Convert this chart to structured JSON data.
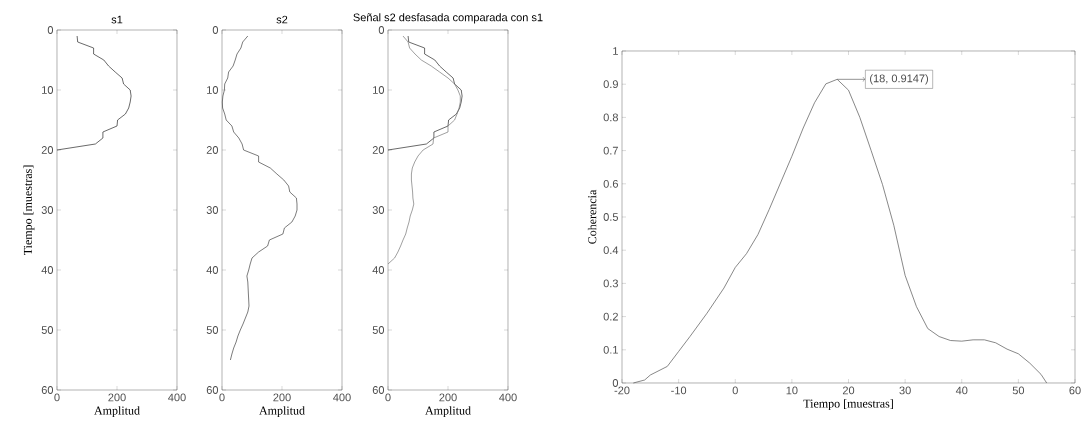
{
  "chart_data": [
    {
      "type": "line",
      "title": "s1",
      "xlabel": "Amplitud",
      "ylabel": "Tiempo [muestras]",
      "xlim": [
        0,
        400
      ],
      "ylim": [
        60,
        0
      ],
      "xticks": [
        0,
        200,
        400
      ],
      "yticks": [
        0,
        10,
        20,
        30,
        40,
        50,
        60
      ],
      "series": [
        {
          "color": "#2a2a2a",
          "x": [
            67,
            69,
            122,
            122,
            156,
            172,
            194,
            217,
            222,
            244,
            247,
            244,
            239,
            228,
            202,
            200,
            153,
            153,
            128,
            0
          ],
          "values": [
            1,
            2,
            3,
            4,
            5,
            6,
            7,
            8,
            9,
            10,
            11,
            12,
            13,
            14,
            15,
            16,
            17,
            18,
            19,
            20
          ]
        }
      ]
    },
    {
      "type": "line",
      "title": "s2",
      "xlabel": "Amplitud",
      "xlim": [
        0,
        400
      ],
      "ylim": [
        60,
        0
      ],
      "xticks": [
        0,
        200,
        400
      ],
      "yticks": [
        0,
        10,
        20,
        30,
        40,
        50,
        60
      ],
      "series": [
        {
          "color": "#444444",
          "x": [
            86,
            69,
            63,
            50,
            44,
            37,
            22,
            19,
            9,
            8,
            3,
            1,
            2,
            9,
            14,
            33,
            39,
            56,
            67,
            72,
            122,
            122,
            161,
            183,
            206,
            222,
            226,
            248,
            250,
            250,
            244,
            233,
            208,
            203,
            158,
            152,
            122,
            100,
            94,
            89,
            83,
            86,
            87,
            88,
            89,
            90,
            86,
            78,
            70,
            61,
            53,
            47,
            39,
            33,
            28
          ],
          "values": [
            1,
            2,
            3,
            4,
            5,
            6,
            7,
            8,
            9,
            10,
            11,
            12,
            13,
            14,
            15,
            16,
            17,
            18,
            19,
            20,
            21,
            22,
            23,
            24,
            25,
            26,
            27,
            28,
            29,
            30,
            31,
            32,
            33,
            34,
            35,
            36,
            37,
            38,
            39,
            40,
            41,
            42,
            43,
            44,
            45,
            46,
            47,
            48,
            49,
            50,
            51,
            52,
            53,
            54,
            55
          ]
        }
      ]
    },
    {
      "type": "line",
      "title": "Señal s2 desfasada comparada con s1",
      "xlabel": "Amplitud",
      "xlim": [
        0,
        400
      ],
      "ylim": [
        60,
        0
      ],
      "xticks": [
        0,
        200,
        400
      ],
      "yticks": [
        0,
        10,
        20,
        30,
        40,
        50,
        60
      ],
      "series": [
        {
          "color": "#2a2a2a",
          "x": [
            67,
            69,
            122,
            122,
            156,
            172,
            194,
            217,
            222,
            244,
            247,
            244,
            239,
            228,
            202,
            200,
            153,
            153,
            128,
            0
          ],
          "values": [
            1,
            2,
            3,
            4,
            5,
            6,
            7,
            8,
            9,
            10,
            11,
            12,
            13,
            14,
            15,
            16,
            17,
            18,
            19,
            20
          ]
        },
        {
          "color": "#777777",
          "x": [
            50,
            67,
            72,
            90,
            111,
            144,
            172,
            200,
            222,
            233,
            241,
            241,
            237,
            230,
            222,
            200,
            200,
            152,
            150,
            117,
            100,
            89,
            81,
            78,
            78,
            80,
            82,
            83,
            86,
            81,
            74,
            70,
            64,
            59,
            50,
            42,
            33,
            22,
            0
          ],
          "values": [
            1,
            2,
            3,
            4,
            5,
            6,
            7,
            8,
            9,
            10,
            11,
            12,
            13,
            14,
            15,
            16,
            17,
            18,
            19,
            20,
            21,
            22,
            23,
            24,
            25,
            26,
            27,
            28,
            29,
            30,
            31,
            32,
            33,
            34,
            35,
            36,
            37,
            38,
            39
          ]
        }
      ]
    },
    {
      "type": "line",
      "xlabel": "Tiempo [muestras]",
      "ylabel": "Coherencia",
      "xlim": [
        -20,
        60
      ],
      "ylim": [
        0,
        1
      ],
      "xticks": [
        -20,
        -10,
        0,
        10,
        20,
        30,
        40,
        50,
        60
      ],
      "yticks": [
        0,
        0.1,
        0.2,
        0.3,
        0.4,
        0.5,
        0.6,
        0.7,
        0.8,
        0.9,
        1
      ],
      "annotations": [
        {
          "text": "(18, 0.9147)",
          "x": 18,
          "y": 0.9147
        }
      ],
      "series": [
        {
          "color": "#555555",
          "x": [
            -18,
            -16,
            -15,
            -12,
            -10,
            -8,
            -5,
            -2,
            0,
            2,
            4,
            6,
            8,
            10,
            12,
            14,
            16,
            18,
            20,
            22,
            24,
            26,
            28,
            30,
            32,
            34,
            36,
            38,
            40,
            42,
            44,
            46,
            48,
            50,
            52,
            54,
            55
          ],
          "values": [
            0,
            0.009,
            0.024,
            0.05,
            0.095,
            0.14,
            0.21,
            0.286,
            0.348,
            0.39,
            0.447,
            0.523,
            0.603,
            0.683,
            0.768,
            0.844,
            0.901,
            0.9147,
            0.882,
            0.8,
            0.7,
            0.598,
            0.475,
            0.324,
            0.23,
            0.164,
            0.14,
            0.128,
            0.126,
            0.13,
            0.13,
            0.121,
            0.102,
            0.088,
            0.06,
            0.026,
            0
          ]
        }
      ]
    }
  ]
}
